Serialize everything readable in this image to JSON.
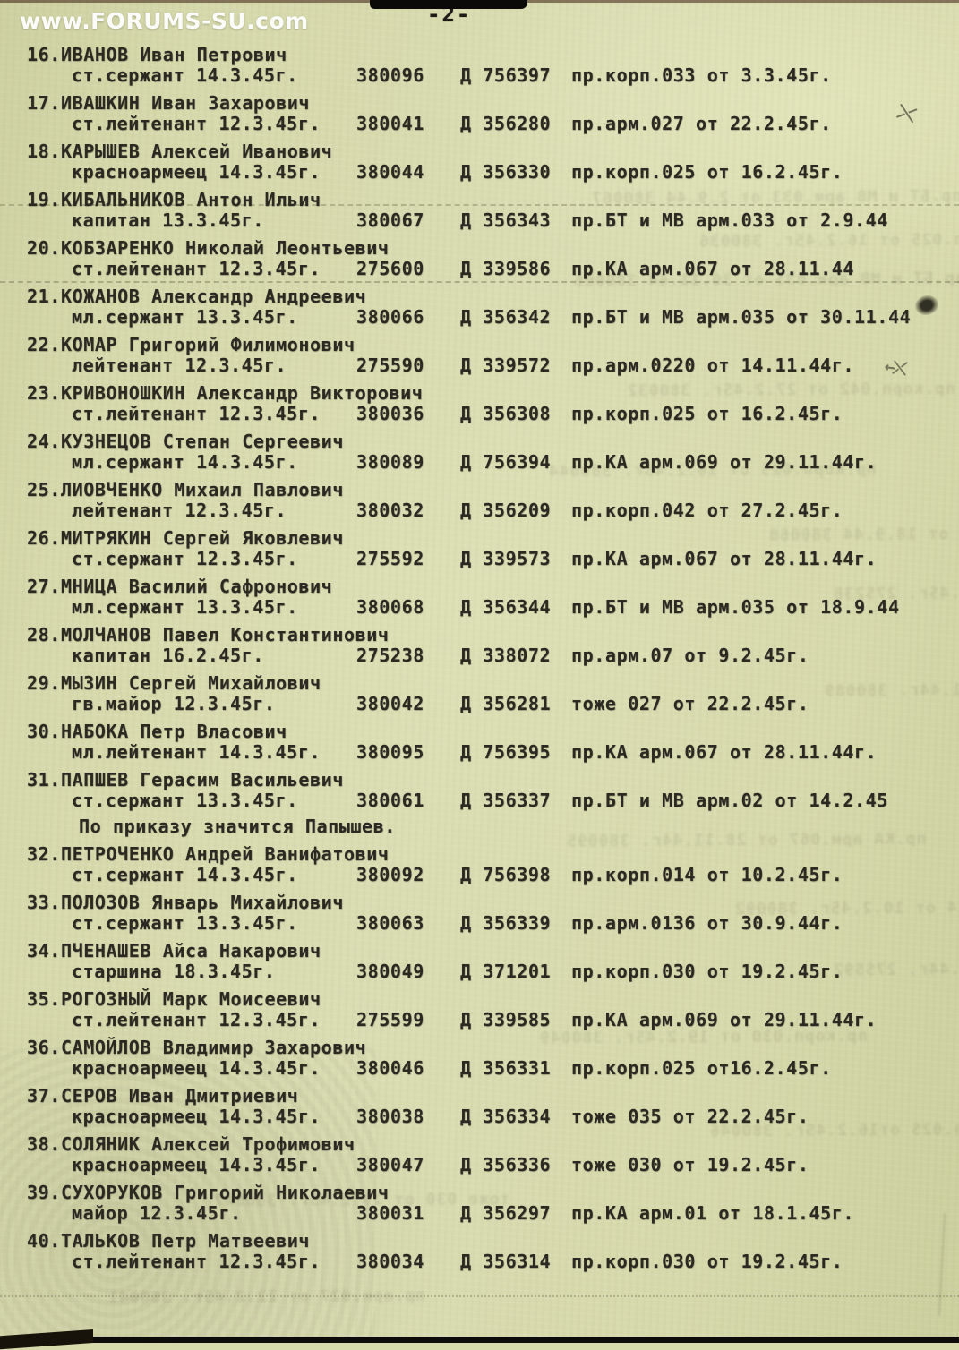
{
  "page": {
    "watermark": "www.FORUMS-SU.com",
    "page_number": "-2-"
  },
  "entries": [
    {
      "num": "16.",
      "name": "ИВАНОВ Иван Петрович",
      "rank_date": "ст.сержант 14.3.45г.",
      "serial": "380096",
      "file_no": "Д 756397",
      "order_ref": "пр.корп.033 от 3.3.45г."
    },
    {
      "num": "17.",
      "name": "ИВАШКИН Иван Захарович",
      "rank_date": "ст.лейтенант 12.3.45г.",
      "serial": "380041",
      "file_no": "Д 356280",
      "order_ref": "пр.арм.027 от 22.2.45г."
    },
    {
      "num": "18.",
      "name": "КАРЫШЕВ Алексей Иванович",
      "rank_date": "красноармеец 14.3.45г.",
      "serial": "380044",
      "file_no": "Д 356330",
      "order_ref": "пр.корп.025 от 16.2.45г."
    },
    {
      "num": "19.",
      "name": "КИБАЛЬНИКОВ Антон Ильич",
      "rank_date": "капитан 13.3.45г.",
      "serial": "380067",
      "file_no": "Д 356343",
      "order_ref": "пр.БТ и МВ арм.033 от 2.9.44"
    },
    {
      "num": "20.",
      "name": "КОБЗАРЕНКО Николай Леонтьевич",
      "rank_date": "ст.лейтенант 12.3.45г.",
      "serial": "275600",
      "file_no": "Д 339586",
      "order_ref": "пр.КА арм.067 от 28.11.44"
    },
    {
      "num": "21.",
      "name": "КОЖАНОВ Александр Андреевич",
      "rank_date": "мл.сержант 13.3.45г.",
      "serial": "380066",
      "file_no": "Д 356342",
      "order_ref": "пр.БТ и МВ арм.035 от 30.11.44"
    },
    {
      "num": "22.",
      "name": "КОМАР Григорий Филимонович",
      "rank_date": "лейтенант 12.3.45г.",
      "serial": "275590",
      "file_no": "Д 339572",
      "order_ref": "пр.арм.0220 от 14.11.44г."
    },
    {
      "num": "23.",
      "name": "КРИВОНОШКИН Александр Викторович",
      "rank_date": "ст.лейтенант 12.3.45г.",
      "serial": "380036",
      "file_no": "Д 356308",
      "order_ref": "пр.корп.025 от 16.2.45г."
    },
    {
      "num": "24.",
      "name": "КУЗНЕЦОВ Степан Сергеевич",
      "rank_date": "мл.сержант 14.3.45г.",
      "serial": "380089",
      "file_no": "Д 756394",
      "order_ref": "пр.КА арм.069 от 29.11.44г."
    },
    {
      "num": "25.",
      "name": "ЛИОВЧЕНКО Михаил Павлович",
      "rank_date": "лейтенант 12.3.45г.",
      "serial": "380032",
      "file_no": "Д 356209",
      "order_ref": "пр.корп.042 от 27.2.45г."
    },
    {
      "num": "26.",
      "name": "МИТРЯКИН Сергей Яковлевич",
      "rank_date": "ст.сержант 12.3.45г.",
      "serial": "275592",
      "file_no": "Д 339573",
      "order_ref": "пр.КА арм.067 от 28.11.44г."
    },
    {
      "num": "27.",
      "name": "МНИЦА Василий Сафронович",
      "rank_date": "мл.сержант 13.3.45г.",
      "serial": "380068",
      "file_no": "Д 356344",
      "order_ref": "пр.БТ и МВ арм.035 от 18.9.44"
    },
    {
      "num": "28.",
      "name": "МОЛЧАНОВ Павел Константинович",
      "rank_date": "капитан 16.2.45г.",
      "serial": "275238",
      "file_no": "Д 338072",
      "order_ref": "пр.арм.07 от 9.2.45г."
    },
    {
      "num": "29.",
      "name": "МЫЗИН Сергей Михайлович",
      "rank_date": "гв.майор 12.3.45г.",
      "serial": "380042",
      "file_no": "Д 356281",
      "order_ref": "тоже 027 от 22.2.45г."
    },
    {
      "num": "30.",
      "name": "НАБОКА Петр Власович",
      "rank_date": "мл.лейтенант 14.3.45г.",
      "serial": "380095",
      "file_no": "Д 756395",
      "order_ref": "пр.КА арм.067 от 28.11.44г."
    },
    {
      "num": "31.",
      "name": "ПАПШЕВ Герасим Васильевич",
      "rank_date": "ст.сержант 13.3.45г.",
      "serial": "380061",
      "file_no": "Д 356337",
      "order_ref": "пр.БТ и МВ арм.02 от 14.2.45",
      "note": "По приказу значится Папышев."
    },
    {
      "num": "32.",
      "name": "ПЕТРОЧЕНКО Андрей Ванифатович",
      "rank_date": "ст.сержант 14.3.45г.",
      "serial": "380092",
      "file_no": "Д 756398",
      "order_ref": "пр.корп.014 от 10.2.45г."
    },
    {
      "num": "33.",
      "name": "ПОЛОЗОВ Январь Михайлович",
      "rank_date": "ст.сержант 13.3.45г.",
      "serial": "380063",
      "file_no": "Д 356339",
      "order_ref": "пр.арм.0136 от 30.9.44г."
    },
    {
      "num": "34.",
      "name": "ПЧЕНАШЕВ Айса Накарович",
      "rank_date": "старшина 18.3.45г.",
      "serial": "380049",
      "file_no": "Д 371201",
      "order_ref": "пр.корп.030 от 19.2.45г."
    },
    {
      "num": "35.",
      "name": "РОГОЗНЫЙ Марк Моисеевич",
      "rank_date": "ст.лейтенант 12.3.45г.",
      "serial": "275599",
      "file_no": "Д 339585",
      "order_ref": "пр.КА арм.069 от 29.11.44г."
    },
    {
      "num": "36.",
      "name": "САМОЙЛОВ Владимир Захарович",
      "rank_date": "красноармеец 14.3.45г.",
      "serial": "380046",
      "file_no": "Д 356331",
      "order_ref": "пр.корп.025 от16.2.45г."
    },
    {
      "num": "37.",
      "name": "СЕРОВ Иван Дмитриевич",
      "rank_date": "красноармеец 14.3.45г.",
      "serial": "380038",
      "file_no": "Д 356334",
      "order_ref": "тоже 035 от 22.2.45г."
    },
    {
      "num": "38.",
      "name": "СОЛЯНИК Алексей Трофимович",
      "rank_date": "красноармеец 14.3.45г.",
      "serial": "380047",
      "file_no": "Д 356336",
      "order_ref": "тоже 030 от 19.2.45г."
    },
    {
      "num": "39.",
      "name": "СУХОРУКОВ Григорий Николаевич",
      "rank_date": "майор 12.3.45г.",
      "serial": "380031",
      "file_no": "Д 356297",
      "order_ref": "пр.КА арм.01 от 18.1.45г."
    },
    {
      "num": "40.",
      "name": "ТАЛЬКОВ Петр Матвеевич",
      "rank_date": "ст.лейтенант 12.3.45г.",
      "serial": "380034",
      "file_no": "Д 356314",
      "order_ref": "пр.корп.030 от 19.2.45г."
    }
  ]
}
